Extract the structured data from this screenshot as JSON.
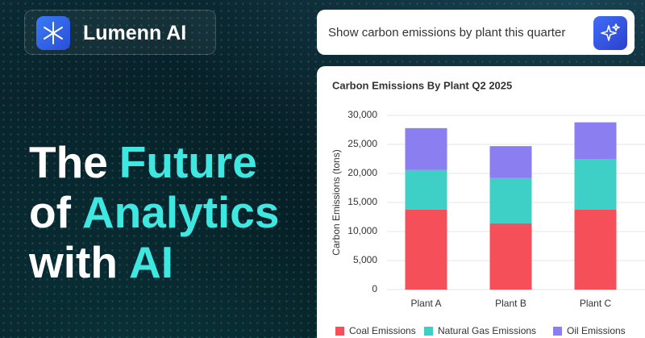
{
  "brand": {
    "name": "Lumenn AI"
  },
  "headline": {
    "lines": [
      [
        {
          "text": "The",
          "accent": false
        },
        {
          "text": "Future",
          "accent": true
        }
      ],
      [
        {
          "text": "of",
          "accent": false
        },
        {
          "text": "Analytics",
          "accent": true
        }
      ],
      [
        {
          "text": "with",
          "accent": false
        },
        {
          "text": "AI",
          "accent": true
        }
      ]
    ]
  },
  "search": {
    "query": "Show carbon emissions by plant this quarter"
  },
  "chart_data": {
    "type": "stacked_bar",
    "title": "Carbon Emissions By Plant  Q2  2025",
    "y_label": "Carbon Emissions (tons)",
    "categories": [
      "Plant A",
      "Plant B",
      "Plant C"
    ],
    "series": [
      {
        "name": "Coal Emissions",
        "color": "#f5505a",
        "values": [
          13800,
          11400,
          13800
        ]
      },
      {
        "name": "Natural Gas Emissions",
        "color": "#3ecfc6",
        "values": [
          6800,
          7800,
          8700
        ]
      },
      {
        "name": "Oil Emissions",
        "color": "#8a7ef0",
        "values": [
          7200,
          5500,
          6300
        ]
      }
    ],
    "ylim": [
      0,
      30000
    ],
    "yticks": [
      0,
      {
        "value": 5000,
        "label": "5,000"
      },
      {
        "value": 10000,
        "label": "10,000"
      },
      {
        "value": 15000,
        "label": "15,000"
      },
      {
        "value": 20000,
        "label": "20,000"
      },
      {
        "value": 25000,
        "label": "25,000"
      },
      {
        "value": 30000,
        "label": "30,000"
      }
    ],
    "grid": true,
    "legend": "bottom"
  }
}
